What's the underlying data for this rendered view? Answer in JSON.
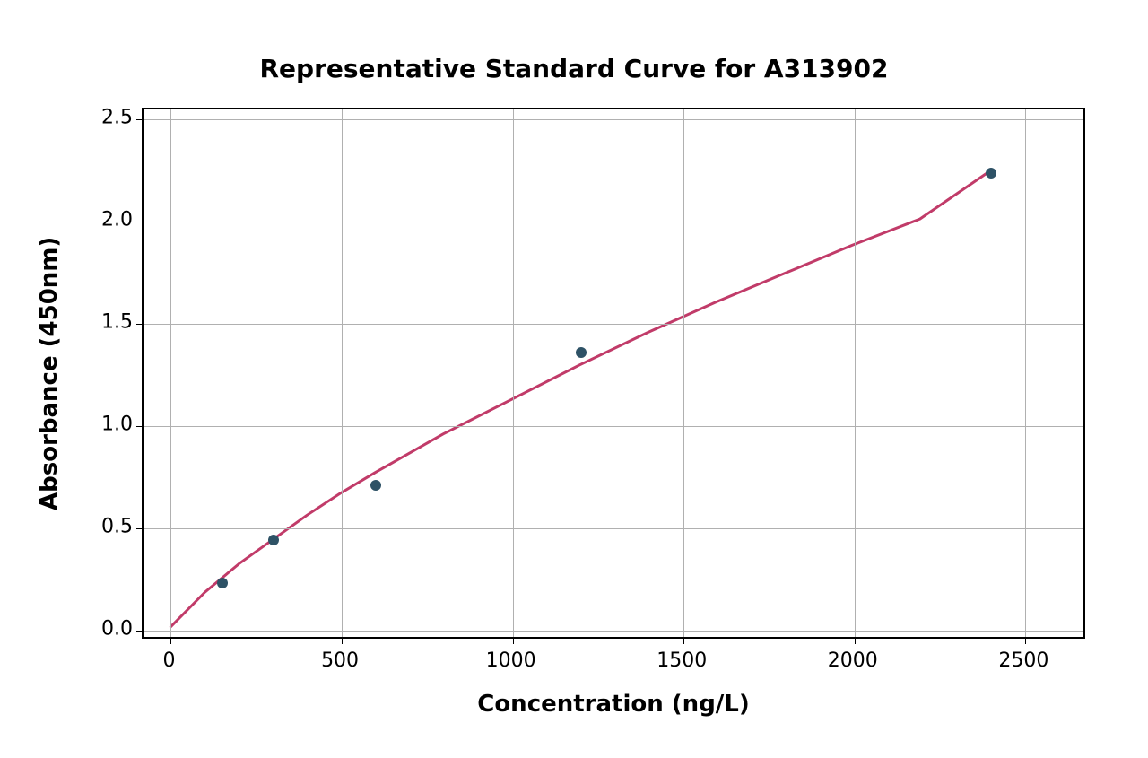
{
  "chart": {
    "type": "scatter-with-curve",
    "title": "Representative Standard Curve for A313902",
    "title_fontsize": 28,
    "title_fontweight": "bold",
    "xlabel": "Concentration (ng/L)",
    "ylabel": "Absorbance (450nm)",
    "label_fontsize": 26,
    "label_fontweight": "bold",
    "tick_fontsize": 22,
    "xlim": [
      -80,
      2680
    ],
    "ylim": [
      -0.05,
      2.55
    ],
    "x_ticks": [
      0,
      500,
      1000,
      1500,
      2000,
      2500
    ],
    "y_ticks": [
      0.0,
      0.5,
      1.0,
      1.5,
      2.0,
      2.5
    ],
    "y_tick_labels": [
      "0.0",
      "0.5",
      "1.0",
      "1.5",
      "2.0",
      "2.5"
    ],
    "grid_color": "#b0b0b0",
    "background_color": "#ffffff",
    "border_color": "#000000",
    "scatter_points": [
      {
        "x": 150,
        "y": 0.23
      },
      {
        "x": 300,
        "y": 0.44
      },
      {
        "x": 600,
        "y": 0.71
      },
      {
        "x": 1200,
        "y": 1.36
      },
      {
        "x": 2400,
        "y": 2.24
      }
    ],
    "marker_color": "#2e5266",
    "marker_size": 12,
    "curve_points": [
      {
        "x": 0,
        "y": 0.0
      },
      {
        "x": 100,
        "y": 0.17
      },
      {
        "x": 200,
        "y": 0.31
      },
      {
        "x": 300,
        "y": 0.43
      },
      {
        "x": 400,
        "y": 0.55
      },
      {
        "x": 500,
        "y": 0.66
      },
      {
        "x": 600,
        "y": 0.76
      },
      {
        "x": 800,
        "y": 0.95
      },
      {
        "x": 1000,
        "y": 1.12
      },
      {
        "x": 1200,
        "y": 1.29
      },
      {
        "x": 1400,
        "y": 1.45
      },
      {
        "x": 1600,
        "y": 1.6
      },
      {
        "x": 1800,
        "y": 1.74
      },
      {
        "x": 2000,
        "y": 1.88
      },
      {
        "x": 2200,
        "y": 2.01
      },
      {
        "x": 2400,
        "y": 2.24
      }
    ],
    "curve_color": "#c13b69",
    "curve_width": 3
  }
}
